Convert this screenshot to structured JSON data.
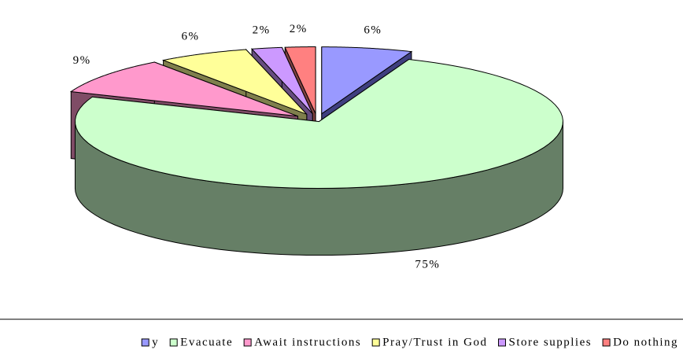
{
  "chart_data": {
    "type": "pie3d",
    "series": [
      {
        "name": "y",
        "color": "#9999ff",
        "side": "#3f3f7f"
      },
      {
        "name": "Evacuate",
        "color": "#ccffcc",
        "side": "#667f66"
      },
      {
        "name": "Await instructions",
        "color": "#ff99cc",
        "side": "#7f4c66"
      },
      {
        "name": "Pray/Trust in God",
        "color": "#ffff99",
        "side": "#7f7f4c"
      },
      {
        "name": "Store supplies",
        "color": "#cc99ff",
        "side": "#664c7f"
      },
      {
        "name": "Do nothing",
        "color": "#ff8080",
        "side": "#7f4040"
      }
    ],
    "values": [
      6,
      75,
      9,
      6,
      2,
      2
    ],
    "value_labels": [
      "6%",
      "75%",
      "9%",
      "6%",
      "2%",
      "2%"
    ],
    "legend": "bottom"
  }
}
